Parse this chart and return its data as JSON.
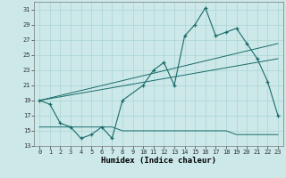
{
  "xlabel": "Humidex (Indice chaleur)",
  "bg_color": "#cce8e8",
  "line_color": "#1a6b6b",
  "grid_color": "#aad4d4",
  "xlim": [
    -0.5,
    23.5
  ],
  "ylim": [
    13,
    32
  ],
  "yticks": [
    13,
    15,
    17,
    19,
    21,
    23,
    25,
    27,
    29,
    31
  ],
  "xticks": [
    0,
    1,
    2,
    3,
    4,
    5,
    6,
    7,
    8,
    9,
    10,
    11,
    12,
    13,
    14,
    15,
    16,
    17,
    18,
    19,
    20,
    21,
    22,
    23
  ],
  "series1_x": [
    0,
    1,
    2,
    3,
    4,
    5,
    6,
    7,
    8,
    10,
    11,
    12,
    13,
    14,
    15,
    16,
    17,
    18,
    19,
    20,
    21,
    22,
    23
  ],
  "series1_y": [
    19.0,
    18.5,
    16.0,
    15.5,
    14.0,
    14.5,
    15.5,
    14.0,
    19.0,
    21.0,
    23.0,
    24.0,
    21.0,
    27.5,
    29.0,
    31.2,
    27.5,
    28.0,
    28.5,
    26.5,
    24.5,
    21.5,
    17.0
  ],
  "series2_x": [
    0,
    23
  ],
  "series2_y": [
    19.0,
    26.5
  ],
  "series3_x": [
    0,
    23
  ],
  "series3_y": [
    19.0,
    24.5
  ],
  "series4_x": [
    0,
    1,
    2,
    3,
    4,
    5,
    6,
    7,
    8,
    9,
    10,
    11,
    12,
    13,
    14,
    15,
    16,
    17,
    18,
    19,
    20,
    21,
    22,
    23
  ],
  "series4_y": [
    15.5,
    15.5,
    15.5,
    15.5,
    15.5,
    15.5,
    15.5,
    15.5,
    15.0,
    15.0,
    15.0,
    15.0,
    15.0,
    15.0,
    15.0,
    15.0,
    15.0,
    15.0,
    15.0,
    14.5,
    14.5,
    14.5,
    14.5,
    14.5
  ],
  "xlabel_fontsize": 6.5,
  "tick_fontsize": 5
}
